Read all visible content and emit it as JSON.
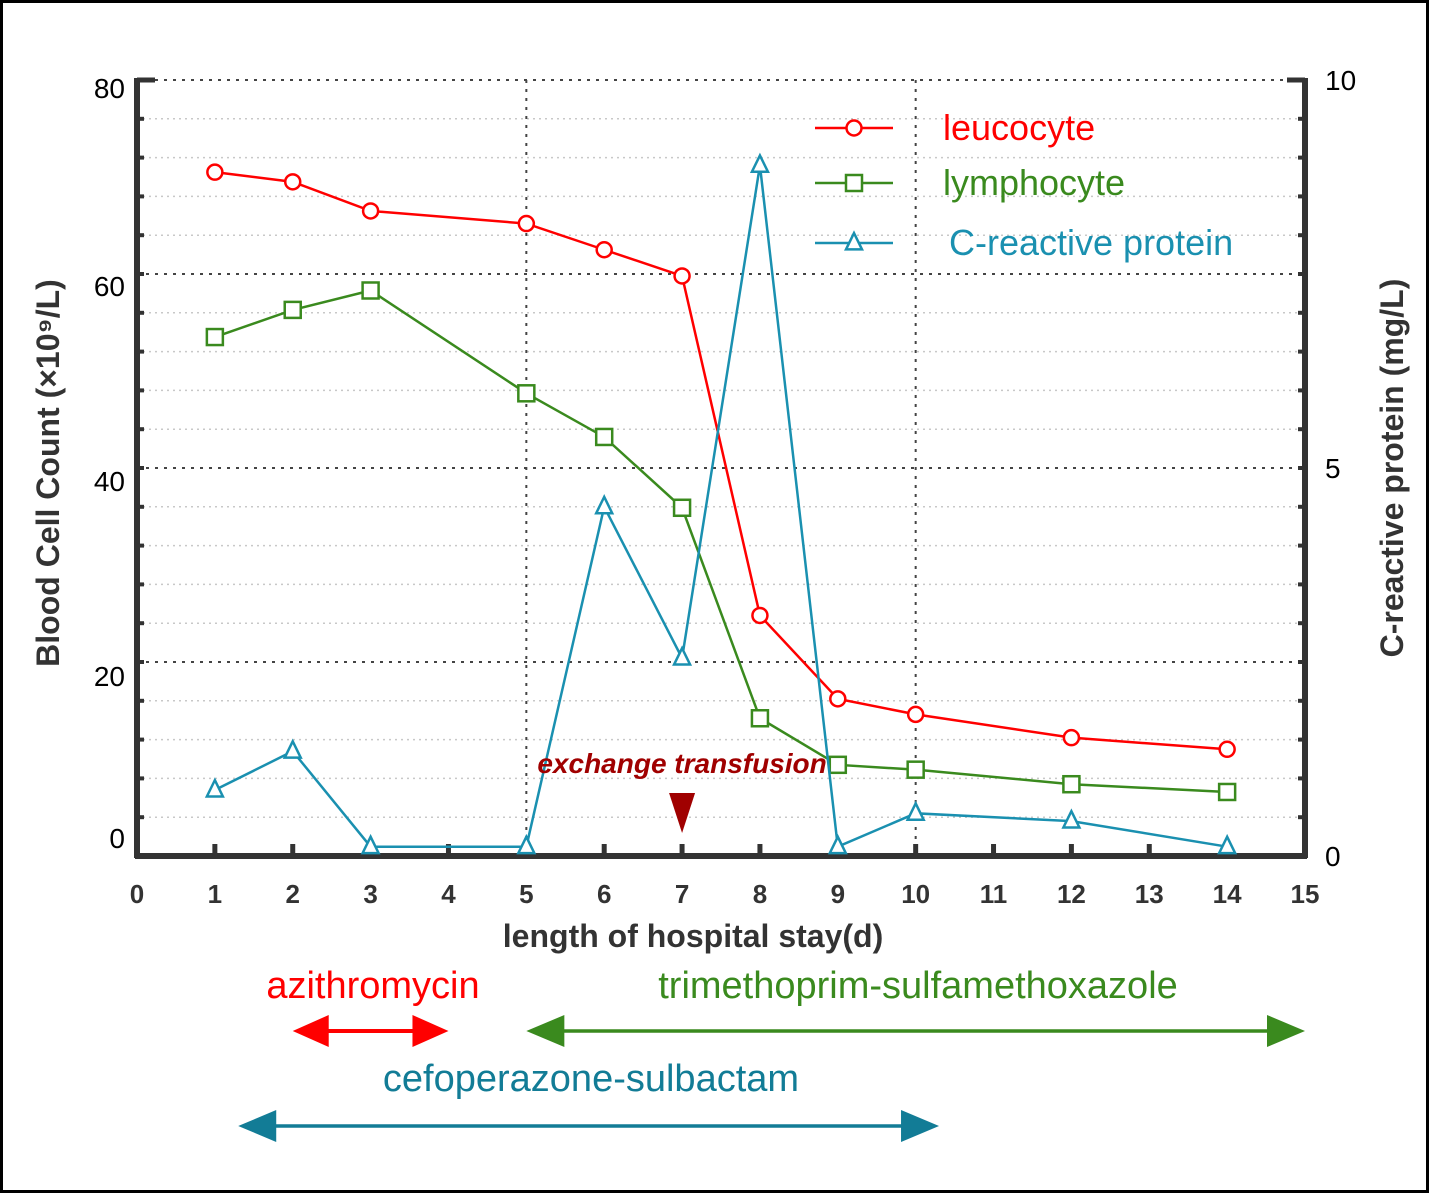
{
  "chart_data": {
    "type": "line",
    "xlabel": "length of hospital stay(d)",
    "ylabel": "Blood Cell Count  (×10⁹/L)",
    "ylabel_right": "C-reactive protein  (mg/L)",
    "x_ticks": [
      "0",
      "1",
      "2",
      "3",
      "4",
      "5",
      "6",
      "7",
      "8",
      "9",
      "10",
      "11",
      "12",
      "13",
      "14",
      "15"
    ],
    "y_ticks": [
      "0",
      "20",
      "40",
      "60",
      "80"
    ],
    "y_right_ticks": [
      "0",
      "5",
      "10"
    ],
    "xlim": [
      0,
      15
    ],
    "ylim": [
      0,
      80
    ],
    "ylim_right": [
      0,
      10
    ],
    "grid": true,
    "legend_position": "top-right",
    "series": [
      {
        "name": "leucocyte",
        "axis": "left",
        "marker": "circle",
        "color": "#ff0000",
        "x": [
          1,
          2,
          3,
          5,
          6,
          7,
          8,
          9,
          10,
          12,
          14
        ],
        "values": [
          70.5,
          69.5,
          66.5,
          65.2,
          62.5,
          59.8,
          24.8,
          16.2,
          14.6,
          12.2,
          11.0
        ]
      },
      {
        "name": "lymphocyte",
        "axis": "left",
        "marker": "square",
        "color": "#3a8a1e",
        "x": [
          1,
          2,
          3,
          5,
          6,
          7,
          8,
          9,
          10,
          12,
          14
        ],
        "values": [
          53.5,
          56.3,
          58.3,
          47.7,
          43.2,
          35.9,
          14.2,
          9.4,
          8.9,
          7.4,
          6.6
        ]
      },
      {
        "name": "C-reactive protein",
        "axis": "right",
        "marker": "triangle",
        "color": "#1a90b0",
        "x": [
          1,
          2,
          3,
          5,
          6,
          7,
          8,
          9,
          10,
          12,
          14
        ],
        "values": [
          0.85,
          1.35,
          0.12,
          0.12,
          4.5,
          2.55,
          8.9,
          0.12,
          0.55,
          0.45,
          0.12
        ]
      }
    ],
    "annotations": [
      {
        "text": "exchange transfusion",
        "x": 7,
        "color": "#a00000"
      }
    ],
    "treatments": [
      {
        "name": "azithromycin",
        "start": 2,
        "end": 4,
        "color": "#ff0000"
      },
      {
        "name": "trimethoprim-sulfamethoxazole",
        "start": 5,
        "end": 15,
        "color": "#3a8a1e"
      },
      {
        "name": "cefoperazone-sulbactam",
        "start": 1.3,
        "end": 10.3,
        "color": "#127c96"
      }
    ]
  }
}
